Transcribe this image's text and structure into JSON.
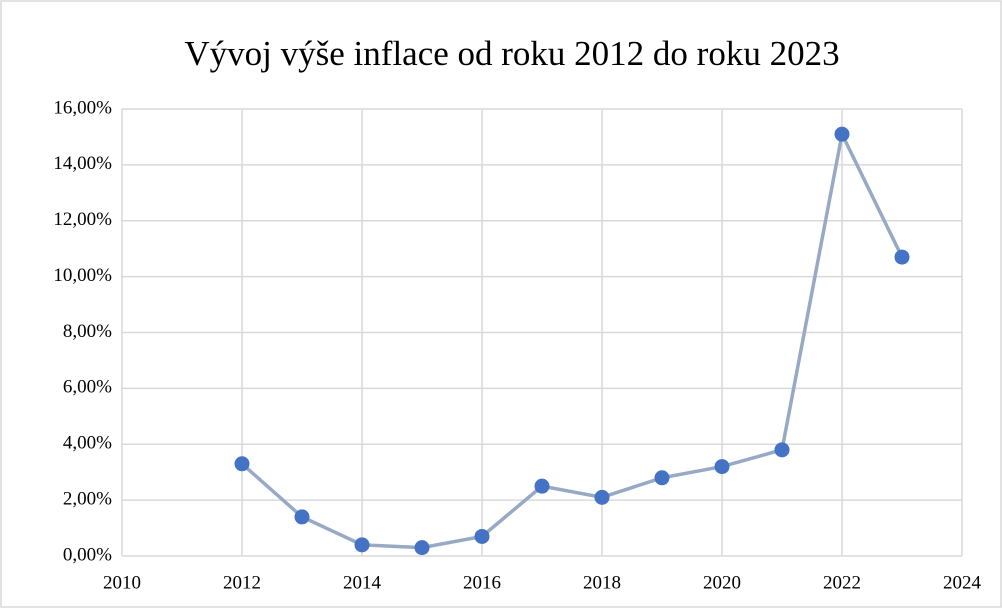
{
  "chart_data": {
    "type": "line",
    "title": "Vývoj výše inflace od roku 2012 do roku 2023",
    "x": [
      2012,
      2013,
      2014,
      2015,
      2016,
      2017,
      2018,
      2019,
      2020,
      2021,
      2022,
      2023
    ],
    "values": [
      3.3,
      1.4,
      0.4,
      0.3,
      0.7,
      2.5,
      2.1,
      2.8,
      3.2,
      3.8,
      15.1,
      10.7
    ],
    "color": "#4472c4",
    "line_color": "#97a9c4",
    "xlim": [
      2010,
      2024
    ],
    "xticks": [
      2010,
      2012,
      2014,
      2016,
      2018,
      2020,
      2022,
      2024
    ],
    "ylim": [
      0,
      16
    ],
    "yticks": [
      {
        "value": 0,
        "label": "0,00%"
      },
      {
        "value": 2,
        "label": "2,00%"
      },
      {
        "value": 4,
        "label": "4,00%"
      },
      {
        "value": 6,
        "label": "6,00%"
      },
      {
        "value": 8,
        "label": "8,00%"
      },
      {
        "value": 10,
        "label": "10,00%"
      },
      {
        "value": 12,
        "label": "12,00%"
      },
      {
        "value": 14,
        "label": "14,00%"
      },
      {
        "value": 16,
        "label": "16,00%"
      }
    ],
    "grid": true
  }
}
